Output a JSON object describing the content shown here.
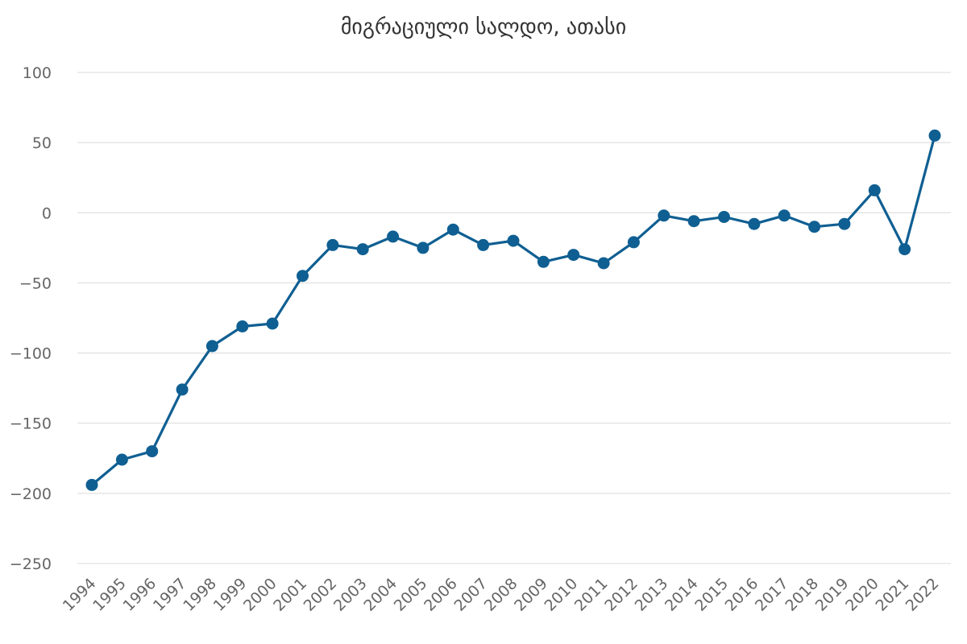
{
  "chart_data": {
    "type": "line",
    "title": "მიგრაციული სალდო, ათასი",
    "xlabel": "",
    "ylabel": "",
    "ylim": [
      -250,
      100
    ],
    "yticks": [
      100,
      50,
      0,
      -50,
      -100,
      -150,
      -200,
      -250
    ],
    "ytick_labels": [
      "100",
      "50",
      "0",
      "−50",
      "−100",
      "−150",
      "−200",
      "−250"
    ],
    "grid": true,
    "legend": "none",
    "colors": {
      "series": "#0f5f92"
    },
    "x": [
      "1994",
      "1995",
      "1996",
      "1997",
      "1998",
      "1999",
      "2000",
      "2001",
      "2002",
      "2003",
      "2004",
      "2005",
      "2006",
      "2007",
      "2008",
      "2009",
      "2010",
      "2011",
      "2012",
      "2013",
      "2014",
      "2015",
      "2016",
      "2017",
      "2018",
      "2019",
      "2020",
      "2021",
      "2022"
    ],
    "series": [
      {
        "values": [
          -194,
          -176,
          -170,
          -126,
          -95,
          -81,
          -79,
          -45,
          -23,
          -26,
          -17,
          -25,
          -12,
          -23,
          -20,
          -35,
          -30,
          -36,
          -21,
          -2,
          -6,
          -3,
          -8,
          -2,
          -10,
          -8,
          16,
          -26,
          55
        ]
      }
    ]
  }
}
